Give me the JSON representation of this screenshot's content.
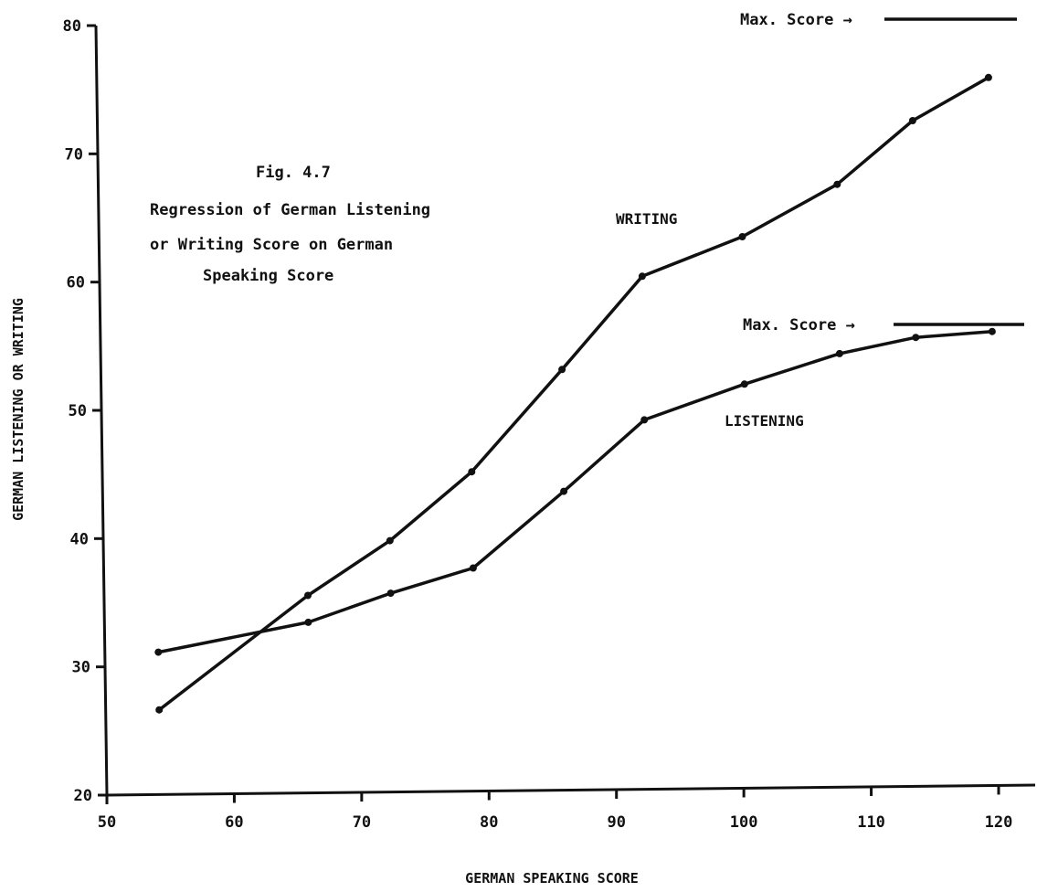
{
  "chart_data": {
    "type": "line",
    "caption": {
      "figure_number": "Fig. 4.7",
      "lines": [
        "Regression of German Listening",
        "or Writing Score on German",
        "Speaking Score"
      ]
    },
    "xlabel": "GERMAN SPEAKING SCORE",
    "ylabel": "GERMAN LISTENING OR WRITING",
    "xlim": [
      50,
      120
    ],
    "ylim": [
      20,
      80
    ],
    "x_ticks": [
      "50",
      "60",
      "70",
      "80",
      "90",
      "100",
      "110",
      "120"
    ],
    "y_ticks": [
      "20",
      "30",
      "40",
      "50",
      "60",
      "70",
      "80"
    ],
    "grid": false,
    "legend": "none",
    "series": [
      {
        "name": "WRITING",
        "x": [
          54.2,
          66.0,
          72.5,
          79.0,
          86.2,
          92.6,
          100.5,
          108.0,
          114.0,
          120.0
        ],
        "y": [
          26.6,
          35.4,
          39.6,
          44.9,
          52.8,
          60.0,
          63.0,
          67.0,
          71.9,
          75.2
        ]
      },
      {
        "name": "LISTENING",
        "x": [
          54.2,
          66.0,
          72.5,
          79.0,
          86.2,
          92.6,
          100.5,
          108.0,
          114.0,
          120.0
        ],
        "y": [
          31.1,
          33.3,
          35.5,
          37.4,
          43.3,
          48.8,
          51.5,
          53.8,
          55.0,
          55.4
        ]
      }
    ],
    "annotations": [
      {
        "text": "Max. Score →",
        "y": 80.5,
        "series": "WRITING"
      },
      {
        "text": "Max. Score →",
        "y": 56.7,
        "series": "LISTENING"
      }
    ]
  }
}
